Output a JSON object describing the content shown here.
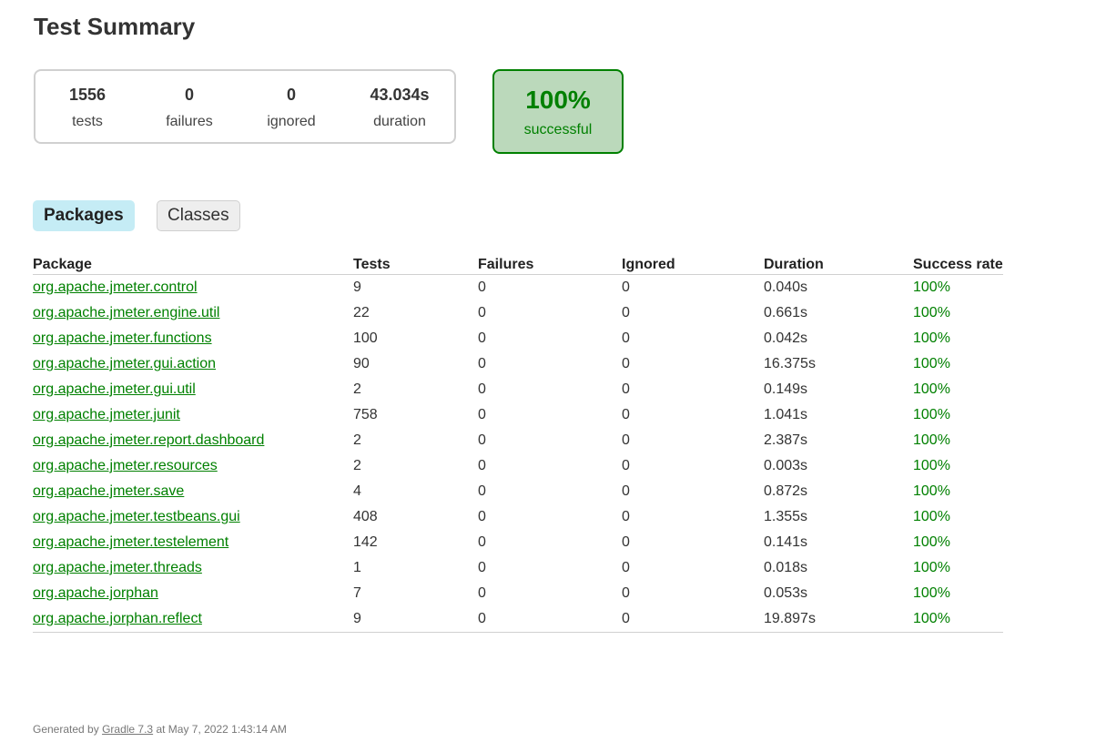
{
  "page_title": "Test Summary",
  "summary": {
    "tests": {
      "value": "1556",
      "label": "tests"
    },
    "failures": {
      "value": "0",
      "label": "failures"
    },
    "ignored": {
      "value": "0",
      "label": "ignored"
    },
    "duration": {
      "value": "43.034s",
      "label": "duration"
    },
    "success": {
      "value": "100%",
      "label": "successful"
    }
  },
  "tabs": [
    {
      "label": "Packages",
      "selected": true
    },
    {
      "label": "Classes",
      "selected": false
    }
  ],
  "table": {
    "headers": [
      "Package",
      "Tests",
      "Failures",
      "Ignored",
      "Duration",
      "Success rate"
    ],
    "rows": [
      [
        "org.apache.jmeter.control",
        "9",
        "0",
        "0",
        "0.040s",
        "100%"
      ],
      [
        "org.apache.jmeter.engine.util",
        "22",
        "0",
        "0",
        "0.661s",
        "100%"
      ],
      [
        "org.apache.jmeter.functions",
        "100",
        "0",
        "0",
        "0.042s",
        "100%"
      ],
      [
        "org.apache.jmeter.gui.action",
        "90",
        "0",
        "0",
        "16.375s",
        "100%"
      ],
      [
        "org.apache.jmeter.gui.util",
        "2",
        "0",
        "0",
        "0.149s",
        "100%"
      ],
      [
        "org.apache.jmeter.junit",
        "758",
        "0",
        "0",
        "1.041s",
        "100%"
      ],
      [
        "org.apache.jmeter.report.dashboard",
        "2",
        "0",
        "0",
        "2.387s",
        "100%"
      ],
      [
        "org.apache.jmeter.resources",
        "2",
        "0",
        "0",
        "0.003s",
        "100%"
      ],
      [
        "org.apache.jmeter.save",
        "4",
        "0",
        "0",
        "0.872s",
        "100%"
      ],
      [
        "org.apache.jmeter.testbeans.gui",
        "408",
        "0",
        "0",
        "1.355s",
        "100%"
      ],
      [
        "org.apache.jmeter.testelement",
        "142",
        "0",
        "0",
        "0.141s",
        "100%"
      ],
      [
        "org.apache.jmeter.threads",
        "1",
        "0",
        "0",
        "0.018s",
        "100%"
      ],
      [
        "org.apache.jorphan",
        "7",
        "0",
        "0",
        "0.053s",
        "100%"
      ],
      [
        "org.apache.jorphan.reflect",
        "9",
        "0",
        "0",
        "19.897s",
        "100%"
      ]
    ]
  },
  "footer": {
    "prefix": "Generated by ",
    "link": "Gradle 7.3",
    "suffix": " at May 7, 2022 1:43:14 AM"
  },
  "colors": {
    "success": "#008000",
    "success_bg": "#bbd9bb",
    "tab_selected_bg": "#c5ecf5"
  }
}
